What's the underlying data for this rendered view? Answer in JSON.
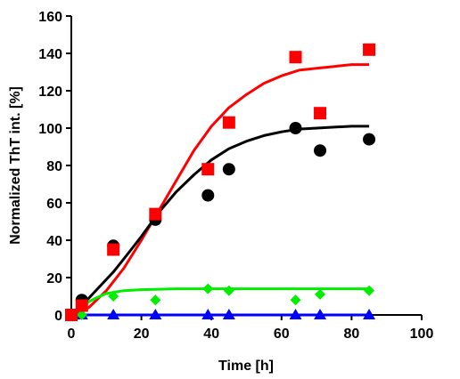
{
  "chart_data": {
    "type": "scatter",
    "title": "",
    "xlabel": "Time [h]",
    "ylabel": "Normalized ThT int. [%]",
    "xlim": [
      0,
      100
    ],
    "ylim": [
      0,
      160
    ],
    "xticks": [
      0,
      20,
      40,
      60,
      80,
      100
    ],
    "yticks": [
      0,
      20,
      40,
      60,
      80,
      100,
      120,
      140,
      160
    ],
    "grid": false,
    "legend": "none",
    "series": [
      {
        "marker": "square",
        "color": "#ff0000",
        "x": [
          0,
          3,
          12,
          24,
          39,
          45,
          64,
          71,
          85
        ],
        "y": [
          0,
          5,
          35,
          54,
          78,
          103,
          138,
          108,
          142
        ],
        "fit": [
          [
            0,
            0
          ],
          [
            5,
            4
          ],
          [
            10,
            13
          ],
          [
            15,
            25
          ],
          [
            20,
            40
          ],
          [
            25,
            56
          ],
          [
            30,
            72
          ],
          [
            35,
            88
          ],
          [
            40,
            101
          ],
          [
            45,
            111
          ],
          [
            50,
            118
          ],
          [
            55,
            124
          ],
          [
            60,
            128
          ],
          [
            65,
            131
          ],
          [
            70,
            132
          ],
          [
            75,
            133
          ],
          [
            80,
            134
          ],
          [
            85,
            134
          ]
        ]
      },
      {
        "marker": "circle",
        "color": "#000000",
        "x": [
          0,
          3,
          12,
          24,
          39,
          45,
          64,
          71,
          85
        ],
        "y": [
          0,
          8,
          37,
          51,
          64,
          78,
          100,
          88,
          94
        ],
        "fit": [
          [
            0,
            0
          ],
          [
            3,
            5
          ],
          [
            8,
            15
          ],
          [
            12,
            23
          ],
          [
            15,
            30
          ],
          [
            20,
            42
          ],
          [
            25,
            55
          ],
          [
            30,
            66
          ],
          [
            35,
            75
          ],
          [
            40,
            83
          ],
          [
            45,
            89
          ],
          [
            50,
            93
          ],
          [
            55,
            96
          ],
          [
            60,
            98
          ],
          [
            65,
            99.5
          ],
          [
            70,
            100
          ],
          [
            75,
            100.5
          ],
          [
            80,
            101
          ],
          [
            85,
            101
          ]
        ]
      },
      {
        "marker": "diamond",
        "color": "#00ee00",
        "x": [
          0,
          3,
          12,
          24,
          39,
          45,
          64,
          71,
          85
        ],
        "y": [
          0,
          0,
          10,
          8,
          14,
          13,
          8,
          11,
          13
        ],
        "fit": [
          [
            0,
            0
          ],
          [
            2,
            3
          ],
          [
            4,
            6
          ],
          [
            7,
            9
          ],
          [
            10,
            11.5
          ],
          [
            15,
            13
          ],
          [
            20,
            13.5
          ],
          [
            30,
            14
          ],
          [
            40,
            14
          ],
          [
            50,
            14
          ],
          [
            60,
            14
          ],
          [
            70,
            14
          ],
          [
            80,
            14
          ],
          [
            85,
            14
          ]
        ]
      },
      {
        "marker": "triangle",
        "color": "#0000ff",
        "x": [
          0,
          3,
          12,
          24,
          39,
          45,
          64,
          71,
          85
        ],
        "y": [
          0,
          0,
          0,
          0,
          0,
          0,
          0,
          0,
          0
        ],
        "fit": [
          [
            0,
            0
          ],
          [
            85,
            0
          ]
        ]
      }
    ]
  }
}
